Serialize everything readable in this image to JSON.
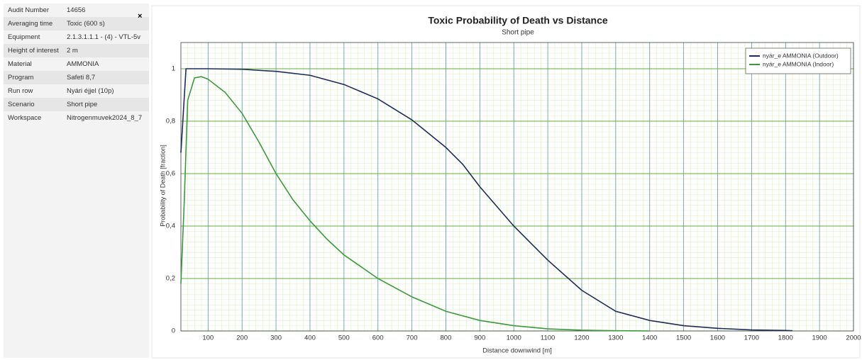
{
  "panel": {
    "rows": [
      [
        "Audit Number",
        "14656"
      ],
      [
        "Averaging time",
        "Toxic (600 s)"
      ],
      [
        "Equipment",
        "2.1.3.1.1.1 - (4) - VTL-5v"
      ],
      [
        "Height of interest",
        "2 m"
      ],
      [
        "Material",
        "AMMONIA"
      ],
      [
        "Program",
        "Safeti 8,7"
      ],
      [
        "Run row",
        "Nyári éjjel (10p)"
      ],
      [
        "Scenario",
        "Short pipe"
      ],
      [
        "Workspace",
        "Nitrogenmuvek2024_8_7"
      ]
    ]
  },
  "chart_data": {
    "type": "line",
    "title": "Toxic Probability of Death vs Distance",
    "subtitle": "Short pipe",
    "xlabel": "Distance downwind [m]",
    "ylabel": "Probability of Death [fraction]",
    "xlim": [
      20,
      2000
    ],
    "xticks": [
      100,
      200,
      300,
      400,
      500,
      600,
      700,
      800,
      900,
      1000,
      1100,
      1200,
      1300,
      1400,
      1500,
      1600,
      1700,
      1800,
      1900,
      2000
    ],
    "ylim": [
      0,
      1.1
    ],
    "yticks": [
      0,
      {
        "value": 0.2,
        "label": "0,2"
      },
      {
        "value": 0.4,
        "label": "0,4"
      },
      {
        "value": 0.6,
        "label": "0,6"
      },
      {
        "value": 0.8,
        "label": "0,8"
      },
      1
    ],
    "grid": true,
    "legend": "upper right",
    "series": [
      {
        "name": "nyár_e AMMONIA (Outdoor)",
        "color": "#1f2a5c",
        "x": [
          20,
          35,
          100,
          200,
          300,
          400,
          500,
          600,
          700,
          800,
          850,
          900,
          950,
          1000,
          1100,
          1200,
          1300,
          1400,
          1500,
          1600,
          1700,
          1800,
          1820
        ],
        "values": [
          0.68,
          1.0,
          1.0,
          0.998,
          0.99,
          0.975,
          0.94,
          0.885,
          0.805,
          0.7,
          0.635,
          0.55,
          0.475,
          0.4,
          0.27,
          0.155,
          0.075,
          0.04,
          0.02,
          0.01,
          0.004,
          0.002,
          0.001
        ]
      },
      {
        "name": "nyár_e AMMONIA (Indoor)",
        "color": "#3a9a3a",
        "x": [
          20,
          30,
          40,
          60,
          80,
          100,
          150,
          200,
          250,
          300,
          350,
          400,
          450,
          500,
          600,
          700,
          800,
          900,
          1000,
          1100,
          1200,
          1300,
          1400
        ],
        "values": [
          0.18,
          0.5,
          0.88,
          0.965,
          0.97,
          0.96,
          0.91,
          0.83,
          0.72,
          0.6,
          0.5,
          0.42,
          0.35,
          0.29,
          0.2,
          0.13,
          0.075,
          0.04,
          0.02,
          0.008,
          0.003,
          0.001,
          0
        ]
      }
    ]
  }
}
